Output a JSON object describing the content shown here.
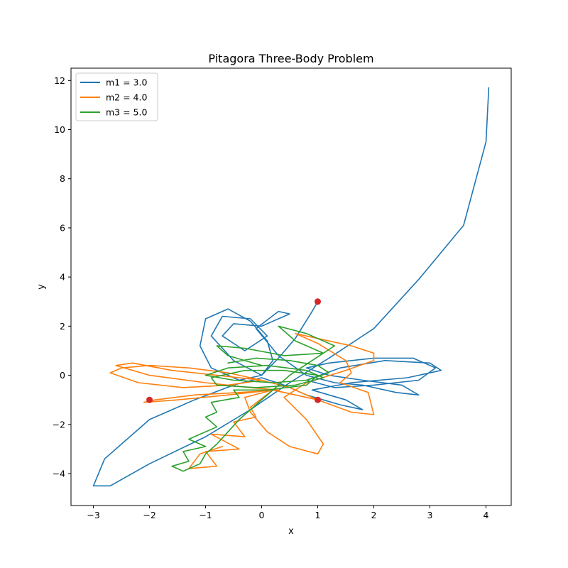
{
  "chart_data": {
    "type": "line",
    "title": "Pitagora Three-Body Problem",
    "xlabel": "x",
    "ylabel": "y",
    "xlim": [
      -3.4,
      4.45
    ],
    "ylim": [
      -5.3,
      12.5
    ],
    "xticks": [
      -3,
      -2,
      -1,
      0,
      1,
      2,
      3,
      4
    ],
    "yticks": [
      -4,
      -2,
      0,
      2,
      4,
      6,
      8,
      10,
      12
    ],
    "grid": false,
    "legend_position": "top-left",
    "series": [
      {
        "name": "m1 = 3.0",
        "color": "#1f77b4",
        "points": [
          [
            1.0,
            3.0
          ],
          [
            0.9,
            2.6
          ],
          [
            0.6,
            1.5
          ],
          [
            0.3,
            0.7
          ],
          [
            0.0,
            0.0
          ],
          [
            -0.4,
            -0.2
          ],
          [
            -0.9,
            0.3
          ],
          [
            -1.1,
            1.2
          ],
          [
            -1.0,
            2.3
          ],
          [
            -0.6,
            2.7
          ],
          [
            -0.2,
            2.2
          ],
          [
            0.1,
            1.4
          ],
          [
            0.2,
            0.6
          ],
          [
            0.0,
            0.0
          ],
          [
            -0.5,
            0.6
          ],
          [
            -0.9,
            1.6
          ],
          [
            -0.7,
            2.4
          ],
          [
            -0.2,
            2.3
          ],
          [
            0.1,
            1.6
          ],
          [
            -0.3,
            1.0
          ],
          [
            -0.7,
            1.6
          ],
          [
            -0.5,
            2.1
          ],
          [
            0.0,
            2.0
          ],
          [
            0.5,
            2.5
          ],
          [
            0.3,
            2.6
          ],
          [
            -0.1,
            1.9
          ],
          [
            0.3,
            0.8
          ],
          [
            0.8,
            0.0
          ],
          [
            1.3,
            -0.3
          ],
          [
            1.8,
            -0.4
          ],
          [
            2.4,
            -0.7
          ],
          [
            2.8,
            -0.8
          ],
          [
            2.5,
            -0.4
          ],
          [
            1.8,
            -0.2
          ],
          [
            1.2,
            0.0
          ],
          [
            0.8,
            0.3
          ],
          [
            1.2,
            0.5
          ],
          [
            2.0,
            0.7
          ],
          [
            2.7,
            0.7
          ],
          [
            3.1,
            0.3
          ],
          [
            2.8,
            -0.2
          ],
          [
            2.0,
            -0.4
          ],
          [
            1.3,
            -0.5
          ],
          [
            0.8,
            -0.2
          ],
          [
            1.4,
            0.3
          ],
          [
            2.2,
            0.6
          ],
          [
            3.0,
            0.5
          ],
          [
            3.2,
            0.2
          ],
          [
            2.6,
            -0.1
          ],
          [
            1.6,
            -0.3
          ],
          [
            0.9,
            -0.6
          ],
          [
            1.5,
            -1.0
          ],
          [
            1.8,
            -1.4
          ],
          [
            1.4,
            -1.2
          ],
          [
            0.8,
            -0.8
          ],
          [
            0.4,
            -0.4
          ],
          [
            0.0,
            -0.1
          ],
          [
            -0.5,
            -0.4
          ],
          [
            -1.2,
            -1.0
          ],
          [
            -2.0,
            -1.8
          ],
          [
            -2.8,
            -3.4
          ],
          [
            -3.0,
            -4.5
          ],
          [
            -2.7,
            -4.5
          ],
          [
            -2.0,
            -3.6
          ],
          [
            -1.0,
            -2.5
          ],
          [
            -0.2,
            -1.4
          ],
          [
            0.5,
            -0.3
          ],
          [
            1.2,
            0.7
          ],
          [
            2.0,
            1.9
          ],
          [
            2.8,
            3.9
          ],
          [
            3.6,
            6.1
          ],
          [
            4.0,
            9.5
          ],
          [
            4.05,
            11.7
          ]
        ]
      },
      {
        "name": "m2 = 4.0",
        "color": "#ff7f0e",
        "points": [
          [
            1.0,
            -1.0
          ],
          [
            0.5,
            -0.5
          ],
          [
            0.0,
            -0.2
          ],
          [
            -0.6,
            0.1
          ],
          [
            -1.3,
            0.3
          ],
          [
            -2.0,
            0.4
          ],
          [
            -2.5,
            0.3
          ],
          [
            -2.7,
            0.1
          ],
          [
            -2.2,
            -0.3
          ],
          [
            -1.4,
            -0.5
          ],
          [
            -0.6,
            -0.4
          ],
          [
            0.0,
            -0.2
          ],
          [
            -0.8,
            0.0
          ],
          [
            -1.6,
            0.2
          ],
          [
            -2.3,
            0.5
          ],
          [
            -2.6,
            0.4
          ],
          [
            -2.0,
            0.0
          ],
          [
            -1.0,
            -0.3
          ],
          [
            -0.2,
            -0.5
          ],
          [
            0.3,
            -0.6
          ],
          [
            -0.4,
            -0.7
          ],
          [
            -1.2,
            -0.8
          ],
          [
            -1.9,
            -1.0
          ],
          [
            -2.1,
            -1.1
          ],
          [
            -1.5,
            -1.0
          ],
          [
            -0.6,
            -0.8
          ],
          [
            0.2,
            -0.6
          ],
          [
            -0.3,
            -0.9
          ],
          [
            -0.2,
            -1.5
          ],
          [
            0.1,
            -2.3
          ],
          [
            0.5,
            -2.9
          ],
          [
            1.0,
            -3.2
          ],
          [
            1.1,
            -2.8
          ],
          [
            0.8,
            -1.8
          ],
          [
            0.4,
            -0.9
          ],
          [
            0.8,
            -0.3
          ],
          [
            1.5,
            0.2
          ],
          [
            2.0,
            0.6
          ],
          [
            2.0,
            0.9
          ],
          [
            1.6,
            1.2
          ],
          [
            1.0,
            1.5
          ],
          [
            0.6,
            1.7
          ],
          [
            1.0,
            1.3
          ],
          [
            1.5,
            0.6
          ],
          [
            1.6,
            0.1
          ],
          [
            1.4,
            -0.3
          ],
          [
            1.9,
            -0.7
          ],
          [
            2.0,
            -1.6
          ],
          [
            1.6,
            -1.5
          ],
          [
            1.0,
            -1.0
          ],
          [
            0.2,
            -0.6
          ],
          [
            -0.2,
            -1.3
          ],
          [
            -0.1,
            -1.7
          ],
          [
            -0.5,
            -1.9
          ],
          [
            -0.3,
            -2.5
          ],
          [
            -0.9,
            -2.4
          ],
          [
            -0.4,
            -3.0
          ],
          [
            -1.0,
            -3.1
          ],
          [
            -0.8,
            -3.7
          ],
          [
            -1.3,
            -3.8
          ],
          [
            -1.1,
            -3.2
          ],
          [
            -0.7,
            -2.9
          ]
        ]
      },
      {
        "name": "m3 = 5.0",
        "color": "#2ca02c",
        "points": [
          [
            -0.6,
            0.5
          ],
          [
            -0.1,
            0.7
          ],
          [
            0.5,
            0.6
          ],
          [
            1.0,
            0.4
          ],
          [
            1.2,
            0.1
          ],
          [
            0.8,
            -0.2
          ],
          [
            0.2,
            -0.3
          ],
          [
            -0.5,
            -0.2
          ],
          [
            -1.0,
            0.0
          ],
          [
            -0.6,
            0.3
          ],
          [
            0.1,
            0.4
          ],
          [
            0.8,
            0.2
          ],
          [
            1.1,
            -0.1
          ],
          [
            0.6,
            -0.4
          ],
          [
            -0.1,
            -0.5
          ],
          [
            -0.8,
            -0.4
          ],
          [
            -0.9,
            -0.1
          ],
          [
            -0.3,
            0.2
          ],
          [
            0.4,
            0.2
          ],
          [
            1.0,
            0.0
          ],
          [
            0.8,
            -0.4
          ],
          [
            0.1,
            -0.6
          ],
          [
            -0.5,
            -0.6
          ],
          [
            -0.4,
            -0.9
          ],
          [
            -0.9,
            -1.1
          ],
          [
            -0.8,
            -1.5
          ],
          [
            -1.0,
            -1.7
          ],
          [
            -0.8,
            -2.1
          ],
          [
            -1.1,
            -2.4
          ],
          [
            -1.3,
            -2.6
          ],
          [
            -1.0,
            -2.9
          ],
          [
            -1.4,
            -3.1
          ],
          [
            -1.3,
            -3.5
          ],
          [
            -1.6,
            -3.7
          ],
          [
            -1.4,
            -3.9
          ],
          [
            -1.1,
            -3.6
          ],
          [
            -1.0,
            -3.2
          ],
          [
            -0.8,
            -2.8
          ],
          [
            -0.6,
            -2.3
          ],
          [
            -0.4,
            -1.8
          ],
          [
            -0.1,
            -1.2
          ],
          [
            0.2,
            -0.6
          ],
          [
            0.5,
            0.0
          ],
          [
            0.9,
            0.6
          ],
          [
            1.3,
            1.2
          ],
          [
            0.8,
            1.7
          ],
          [
            0.3,
            2.0
          ],
          [
            0.6,
            1.4
          ],
          [
            1.1,
            0.9
          ],
          [
            0.4,
            0.8
          ],
          [
            -0.3,
            1.1
          ],
          [
            -0.8,
            1.2
          ],
          [
            -0.6,
            0.8
          ],
          [
            0.0,
            0.4
          ]
        ]
      }
    ],
    "markers": {
      "color": "#d62728",
      "points": [
        [
          1.0,
          3.0
        ],
        [
          -2.0,
          -1.0
        ],
        [
          1.0,
          -1.0
        ]
      ]
    }
  }
}
